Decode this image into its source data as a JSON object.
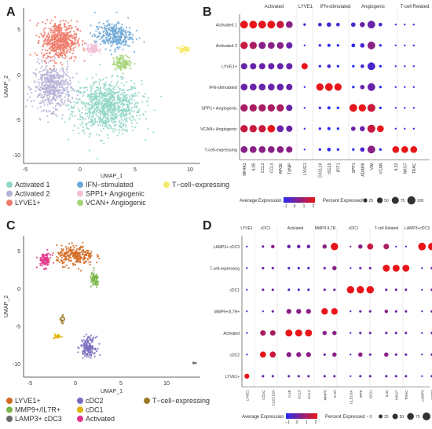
{
  "panels": {
    "A": {
      "label": "A",
      "xlabel": "UMAP_1",
      "ylabel": "UMAP_2",
      "xticks": [
        "-5",
        "0",
        "5",
        "10"
      ],
      "yticks": [
        "5",
        "0",
        "-5",
        "-10"
      ],
      "legend": [
        {
          "name": "Activated 1",
          "color": "#8fd6c6"
        },
        {
          "name": "Activated 2",
          "color": "#b7b1d6"
        },
        {
          "name": "LYVE1+",
          "color": "#ef7b6a"
        },
        {
          "name": "IFN−stimulated",
          "color": "#6ea8d6"
        },
        {
          "name": "SPP1+ Angiogenic",
          "color": "#f4bfd6"
        },
        {
          "name": "VCAN+ Angiogenic",
          "color": "#a5d477"
        },
        {
          "name": "T−cell−expressing",
          "color": "#f4ea6a"
        }
      ]
    },
    "B": {
      "label": "B",
      "groups": [
        "Activated",
        "LYVE1",
        "IFN-stimulated",
        "Angiogenic",
        "T-cell Related"
      ],
      "genes": [
        "NR4A3",
        "IL1B",
        "CCL3",
        "CCL4",
        "APOE",
        "TXNIP",
        "LYVE1",
        "CXCL10",
        "ISG15",
        "IFIT1",
        "SPP1",
        "ADAM8",
        "VIM",
        "VCAN",
        "IL32",
        "NKG7",
        "TRAC"
      ],
      "rows": [
        "Activated 1",
        "Activated 2",
        "LYVE1+",
        "IFN-stimulated",
        "SPP1+ Angiogenic",
        "VCAN+ Angiogenic",
        "T-cell-expressing"
      ],
      "legend_expr_title": "Average Expression",
      "legend_expr_ticks": [
        "−1",
        "0",
        "1",
        "2"
      ],
      "legend_pct_title": "Percent Expressed",
      "legend_pct_values": [
        "25",
        "50",
        "75",
        "100"
      ]
    },
    "C": {
      "label": "C",
      "xlabel": "UMAP_1",
      "ylabel": "UMAP_2",
      "xticks": [
        "-5",
        "0",
        "5",
        "10"
      ],
      "yticks": [
        "5",
        "0",
        "-5",
        "-10"
      ],
      "legend": [
        {
          "name": "LYVE1+",
          "color": "#d2691e"
        },
        {
          "name": "MMP9+/IL7R+",
          "color": "#7ab648"
        },
        {
          "name": "LAMP3+ cDC3",
          "color": "#6a6a6a"
        },
        {
          "name": "cDC2",
          "color": "#7c6cc0"
        },
        {
          "name": "cDC1",
          "color": "#e0b200"
        },
        {
          "name": "Activated",
          "color": "#e0338a"
        },
        {
          "name": "T−cell−expressing",
          "color": "#9c7a2a"
        }
      ]
    },
    "D": {
      "label": "D",
      "groups": [
        "LYVE1",
        "cDC2",
        "Activated",
        "MMP9 IL7R",
        "cDC1",
        "T-cell Related",
        "LAMP3+cDC3"
      ],
      "genes": [
        "LYVE1",
        "CD1C",
        "CLEC10A",
        "IL1B",
        "CCL3",
        "CCL4",
        "MMP9",
        "IL7R",
        "CLEC9A",
        "IRF8",
        "IDO1",
        "IL32",
        "NKG7",
        "TRAC",
        "LAMP3",
        "CCR7"
      ],
      "rows": [
        "LAMP3+ cDC3",
        "T-cell-expressing",
        "cDC1",
        "MMP9+/IL7R+",
        "Activated",
        "cDC2",
        "LYVE1+"
      ],
      "legend_expr_title": "Average Expression",
      "legend_expr_ticks": [
        "−1",
        "0",
        "1",
        "2"
      ],
      "legend_pct_title": "Percent Expressed",
      "legend_pct_values": [
        "0",
        "25",
        "50",
        "75",
        "100"
      ]
    }
  },
  "chart_data": [
    {
      "type": "scatter",
      "panel": "A",
      "xlabel": "UMAP_1",
      "ylabel": "UMAP_2",
      "xlim": [
        -6,
        11
      ],
      "ylim": [
        -11,
        7
      ],
      "clusters": [
        {
          "name": "Activated 1",
          "color": "#8fd6c6",
          "center": [
            2,
            -4.5
          ],
          "spread": [
            3.3,
            3.0
          ],
          "n": 900
        },
        {
          "name": "Activated 2",
          "color": "#b7b1d6",
          "center": [
            -3.3,
            -2.2
          ],
          "spread": [
            1.8,
            2.6
          ],
          "n": 520
        },
        {
          "name": "LYVE1+",
          "color": "#ef7b6a",
          "center": [
            -2.6,
            3.2
          ],
          "spread": [
            1.7,
            2.2
          ],
          "n": 560
        },
        {
          "name": "IFN−stimulated",
          "color": "#6ea8d6",
          "center": [
            2.6,
            3.8
          ],
          "spread": [
            1.8,
            1.5
          ],
          "n": 320
        },
        {
          "name": "SPP1+ Angiogenic",
          "color": "#f4bfd6",
          "center": [
            0.6,
            2.2
          ],
          "spread": [
            0.6,
            0.6
          ],
          "n": 90
        },
        {
          "name": "VCAN+ Angiogenic",
          "color": "#a5d477",
          "center": [
            3.5,
            0.6
          ],
          "spread": [
            0.9,
            0.8
          ],
          "n": 130
        },
        {
          "name": "T−cell−expressing",
          "color": "#f4ea6a",
          "center": [
            9.4,
            2.2
          ],
          "spread": [
            0.45,
            0.35
          ],
          "n": 60
        }
      ]
    },
    {
      "type": "dotplot",
      "panel": "B",
      "genes": [
        "NR4A3",
        "IL1B",
        "CCL3",
        "CCL4",
        "APOE",
        "TXNIP",
        "LYVE1",
        "CXCL10",
        "ISG15",
        "IFIT1",
        "SPP1",
        "ADAM8",
        "VIM",
        "VCAN",
        "IL32",
        "NKG7",
        "TRAC"
      ],
      "rows": [
        "Activated 1",
        "Activated 2",
        "LYVE1+",
        "IFN-stimulated",
        "SPP1+ Angiogenic",
        "VCAN+ Angiogenic",
        "T-cell-expressing"
      ],
      "expression": [
        [
          2,
          2,
          2,
          2,
          1.5,
          0.5,
          -0.5,
          -0.5,
          -0.5,
          -0.5,
          -0.5,
          0,
          0,
          -0.5,
          -1,
          -1,
          -1
        ],
        [
          1.5,
          1,
          0.5,
          0.5,
          0.5,
          0,
          -1,
          -1,
          -1,
          -1,
          -1,
          -0.5,
          0.5,
          -1,
          -1,
          -1,
          -1
        ],
        [
          0,
          0,
          0,
          0,
          0,
          0,
          2,
          -1,
          -0.5,
          -1,
          -1,
          -0.5,
          -0.5,
          -1,
          -1,
          -1,
          -1
        ],
        [
          0,
          0,
          0,
          0,
          0,
          0,
          -1,
          2,
          2,
          2,
          -1,
          0,
          0,
          -1,
          -1,
          -1,
          -1
        ],
        [
          1,
          1,
          1,
          1,
          1,
          0,
          -1,
          -1,
          -1,
          -1,
          2,
          2,
          1.5,
          -1,
          -1,
          -1,
          -1
        ],
        [
          1.5,
          1.5,
          1.5,
          2,
          0,
          0,
          -1,
          -1,
          -1,
          -1,
          0,
          0,
          1.5,
          2,
          -1,
          -1,
          -1
        ],
        [
          0.5,
          0.5,
          0.5,
          0.5,
          0.5,
          0.5,
          -1,
          -1,
          -1,
          -1,
          -1,
          -0.5,
          0.5,
          -1,
          2,
          2,
          2
        ]
      ],
      "percent": [
        [
          90,
          90,
          90,
          90,
          80,
          70,
          10,
          20,
          30,
          20,
          30,
          40,
          90,
          20,
          5,
          5,
          5
        ],
        [
          80,
          80,
          75,
          70,
          70,
          60,
          5,
          10,
          15,
          10,
          20,
          30,
          90,
          10,
          5,
          5,
          5
        ],
        [
          60,
          60,
          60,
          60,
          60,
          60,
          60,
          10,
          20,
          10,
          10,
          20,
          90,
          10,
          5,
          5,
          5
        ],
        [
          70,
          70,
          70,
          70,
          70,
          60,
          5,
          80,
          90,
          80,
          10,
          30,
          90,
          10,
          5,
          5,
          5
        ],
        [
          80,
          80,
          80,
          80,
          80,
          60,
          5,
          10,
          15,
          10,
          90,
          80,
          95,
          10,
          5,
          5,
          5
        ],
        [
          80,
          80,
          80,
          85,
          70,
          60,
          5,
          10,
          15,
          10,
          30,
          40,
          95,
          70,
          5,
          5,
          5
        ],
        [
          70,
          70,
          70,
          70,
          70,
          60,
          5,
          10,
          20,
          10,
          10,
          30,
          90,
          10,
          70,
          70,
          70
        ]
      ]
    },
    {
      "type": "scatter",
      "panel": "C",
      "xlabel": "UMAP_1",
      "ylabel": "UMAP_2",
      "xlim": [
        -6,
        13
      ],
      "ylim": [
        -12,
        7
      ],
      "clusters": [
        {
          "name": "LYVE1+",
          "color": "#d2691e",
          "center": [
            -0.5,
            4.3
          ],
          "spread": [
            2.0,
            1.3
          ],
          "n": 260
        },
        {
          "name": "MMP9+/IL7R+",
          "color": "#7ab648",
          "center": [
            1.6,
            1.0
          ],
          "spread": [
            0.5,
            1.0
          ],
          "n": 80
        },
        {
          "name": "LAMP3+ cDC3",
          "color": "#6a6a6a",
          "center": [
            12.3,
            -10.2
          ],
          "spread": [
            0.2,
            0.15
          ],
          "n": 8
        },
        {
          "name": "cDC2",
          "color": "#7c6cc0",
          "center": [
            0.9,
            -8.0
          ],
          "spread": [
            0.8,
            1.3
          ],
          "n": 160
        },
        {
          "name": "cDC1",
          "color": "#e0b200",
          "center": [
            -2.4,
            -6.6
          ],
          "spread": [
            0.4,
            0.3
          ],
          "n": 25
        },
        {
          "name": "Activated",
          "color": "#e0338a",
          "center": [
            -3.8,
            3.7
          ],
          "spread": [
            0.7,
            1.0
          ],
          "n": 90
        },
        {
          "name": "T−cell−expressing",
          "color": "#9c7a2a",
          "center": [
            -1.9,
            -4.5
          ],
          "spread": [
            0.2,
            0.8
          ],
          "n": 20
        }
      ]
    },
    {
      "type": "dotplot",
      "panel": "D",
      "genes": [
        "LYVE1",
        "CD1C",
        "CLEC10A",
        "IL1B",
        "CCL3",
        "CCL4",
        "MMP9",
        "IL7R",
        "CLEC9A",
        "IRF8",
        "IDO1",
        "IL32",
        "NKG7",
        "TRAC",
        "LAMP3",
        "CCR7"
      ],
      "rows": [
        "LAMP3+ cDC3",
        "T-cell-expressing",
        "cDC1",
        "MMP9+/IL7R+",
        "Activated",
        "cDC2",
        "LYVE1+"
      ],
      "expression": [
        [
          -0.5,
          0,
          0.5,
          0,
          0,
          0,
          0.5,
          2,
          0,
          0.5,
          1.5,
          1,
          -0.5,
          -0.5,
          2,
          2
        ],
        [
          -0.5,
          0,
          0,
          -0.5,
          -0.5,
          -0.5,
          0,
          0.5,
          -0.5,
          0,
          0,
          2,
          2,
          2,
          -0.5,
          0
        ],
        [
          -0.5,
          0,
          0,
          -0.5,
          -0.5,
          -0.5,
          0,
          0,
          2,
          2,
          2,
          0,
          0,
          0,
          -0.5,
          0
        ],
        [
          -0.5,
          -0.5,
          0,
          0.5,
          0.5,
          0.5,
          2,
          2,
          -0.5,
          0,
          0,
          0.5,
          0,
          0,
          -0.5,
          0
        ],
        [
          -0.5,
          1,
          1,
          2,
          2,
          2,
          0.5,
          0.5,
          -0.5,
          0,
          0,
          0,
          0,
          0,
          -0.5,
          0
        ],
        [
          -0.5,
          2,
          1.5,
          0.5,
          0.5,
          0.5,
          0,
          0.5,
          -0.5,
          0.5,
          0,
          0.5,
          0,
          0,
          -0.5,
          0
        ],
        [
          2,
          0,
          0,
          0,
          0,
          0,
          0,
          0,
          -0.5,
          0,
          0,
          0,
          0,
          0,
          -0.5,
          0
        ]
      ],
      "percent": [
        [
          5,
          10,
          20,
          20,
          20,
          20,
          30,
          90,
          5,
          30,
          60,
          50,
          5,
          5,
          95,
          90
        ],
        [
          5,
          10,
          10,
          10,
          10,
          10,
          10,
          30,
          5,
          10,
          10,
          80,
          80,
          80,
          5,
          10
        ],
        [
          5,
          10,
          10,
          10,
          10,
          10,
          10,
          10,
          90,
          90,
          90,
          10,
          10,
          10,
          5,
          10
        ],
        [
          5,
          5,
          10,
          40,
          40,
          40,
          70,
          70,
          5,
          10,
          10,
          20,
          10,
          10,
          5,
          10
        ],
        [
          5,
          50,
          50,
          80,
          80,
          80,
          30,
          30,
          5,
          10,
          10,
          10,
          10,
          10,
          5,
          10
        ],
        [
          5,
          60,
          60,
          40,
          40,
          40,
          10,
          30,
          5,
          30,
          10,
          30,
          10,
          10,
          5,
          10
        ],
        [
          40,
          10,
          10,
          10,
          10,
          10,
          10,
          10,
          5,
          10,
          10,
          10,
          10,
          10,
          5,
          10
        ]
      ]
    }
  ]
}
